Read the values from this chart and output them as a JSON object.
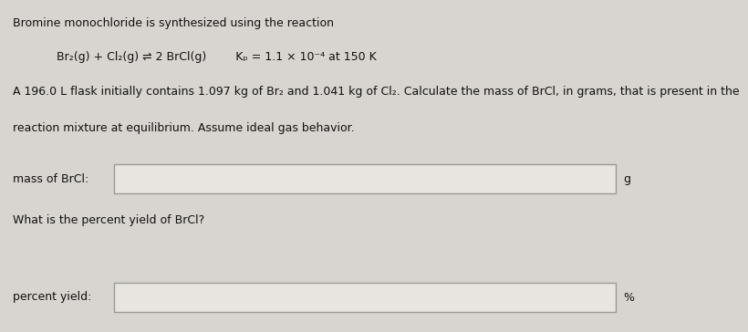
{
  "background_color": "#d8d5d0",
  "box_fill": "#e8e5e0",
  "box_edge": "#999999",
  "text_color": "#111111",
  "title_line": "Bromine monochloride is synthesized using the reaction",
  "reaction_line": "Br₂(g) + Cl₂(g) ⇌ 2 BrCl(g)        Kₚ = 1.1 × 10⁻⁴ at 150 K",
  "problem_line1": "A 196.0 L flask initially contains 1.097 kg of Br₂ and 1.041 kg of Cl₂. Calculate the mass of BrCl, in grams, that is present in the",
  "problem_line2": "reaction mixture at equilibrium. Assume ideal gas behavior.",
  "label1": "mass of BrCl:",
  "unit1": "g",
  "question2": "What is the percent yield of BrCl?",
  "label2": "percent yield:",
  "unit2": "%",
  "font_size": 9.0
}
